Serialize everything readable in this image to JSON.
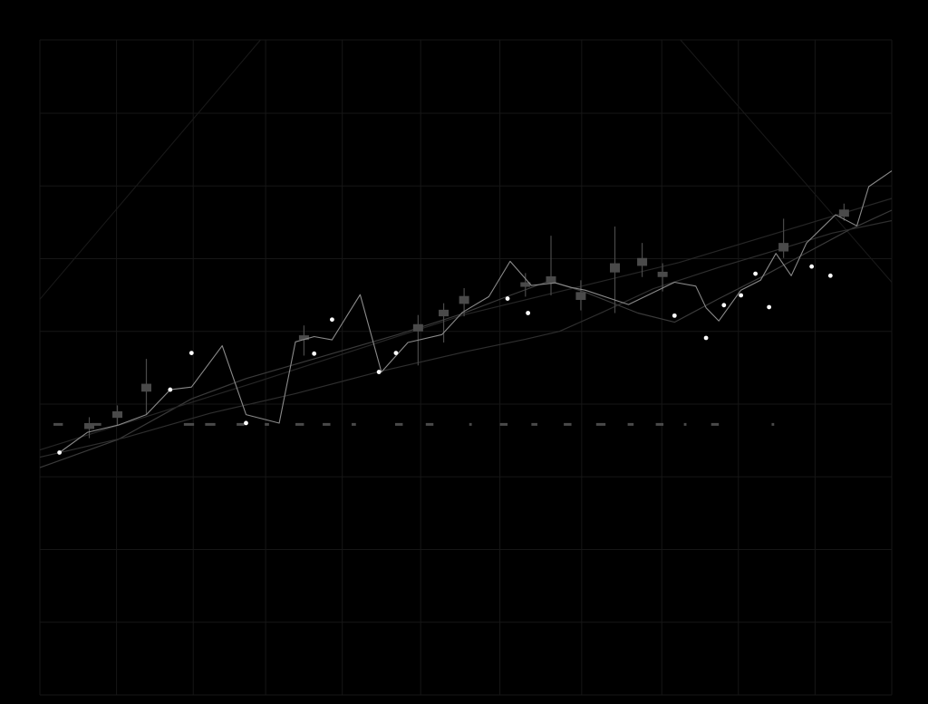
{
  "chart_data": {
    "type": "line",
    "title": "",
    "xlabel": "",
    "ylabel": "",
    "xlim": [
      0,
      100
    ],
    "ylim": [
      0,
      100
    ],
    "grid": true,
    "legend": "none",
    "colors": {
      "background": "#000000",
      "grid": "#161616",
      "price_line": "#8a8a8a",
      "price_marker": "#ffffff",
      "ma_fast": "#3a3a3a",
      "ma_slow": "#2e2e2e",
      "ma_long": "#262626",
      "candle": "#4a4a4a",
      "wick": "#4a4a4a",
      "reference_dash": "#4a4a4a",
      "envelope": "#1a1a1a"
    },
    "series": [
      {
        "role": "price",
        "x": [
          2.3,
          5.6,
          9.2,
          12.5,
          15.3,
          17.8,
          21.4,
          24.2,
          28.1,
          30.0,
          32.2,
          34.3,
          37.6,
          40.1,
          43.2,
          47.2,
          49.6,
          52.7,
          55.2,
          57.7,
          60.5,
          62.4,
          64.0,
          69.1,
          74.5,
          77.0,
          78.2,
          79.7,
          82.3,
          84.6,
          86.4,
          88.2,
          90.0,
          93.4,
          95.9,
          97.3,
          100.0
        ],
        "y": [
          37.0,
          40.1,
          41.2,
          42.8,
          46.6,
          47.0,
          53.3,
          42.8,
          41.5,
          53.9,
          54.7,
          54.2,
          61.1,
          49.3,
          53.8,
          55.0,
          58.4,
          60.8,
          66.2,
          62.5,
          62.9,
          62.2,
          61.8,
          59.6,
          63.0,
          62.4,
          59.1,
          57.1,
          61.8,
          63.3,
          67.4,
          64.0,
          69.0,
          73.3,
          71.6,
          77.6,
          80.0
        ]
      },
      {
        "role": "ma_fast",
        "x": [
          0.0,
          9.2,
          17.8,
          24.2,
          34.3,
          42.0,
          49.6,
          55.2,
          59.8,
          64.0,
          70.2,
          74.5,
          79.7,
          85.0,
          90.0,
          95.0,
          100.0
        ],
        "y": [
          34.7,
          39.0,
          45.2,
          48.3,
          52.1,
          55.0,
          58.2,
          61.0,
          63.2,
          61.5,
          58.3,
          56.9,
          60.5,
          64.0,
          67.5,
          71.0,
          74.0
        ]
      },
      {
        "role": "ma_slow",
        "x": [
          0.0,
          10.0,
          20.0,
          30.0,
          40.0,
          50.0,
          57.0,
          61.0,
          66.0,
          72.0,
          80.0,
          87.0,
          93.0,
          100.0
        ],
        "y": [
          36.3,
          39.3,
          43.0,
          46.0,
          49.4,
          52.4,
          54.3,
          55.5,
          58.4,
          62.0,
          65.4,
          68.1,
          70.5,
          72.4
        ]
      },
      {
        "role": "ma_long",
        "x": [
          0.0,
          25.0,
          50.0,
          75.0,
          100.0
        ],
        "y": [
          37.4,
          47.6,
          58.1,
          66.0,
          75.8
        ]
      }
    ],
    "markers": {
      "x": [
        2.3,
        15.3,
        17.8,
        24.2,
        32.2,
        34.3,
        39.8,
        41.8,
        54.9,
        57.3,
        74.5,
        78.2,
        80.3,
        82.3,
        84.0,
        85.6,
        90.6,
        92.8
      ],
      "y": [
        37.0,
        46.6,
        52.2,
        41.5,
        52.1,
        57.3,
        49.3,
        52.2,
        60.5,
        58.3,
        57.9,
        54.5,
        59.5,
        61.0,
        64.3,
        59.2,
        65.4,
        64.0
      ]
    },
    "candles": [
      {
        "x": 5.8,
        "open": 40.6,
        "close": 41.5,
        "high": 42.4,
        "low": 39.2
      },
      {
        "x": 9.1,
        "open": 42.3,
        "close": 43.3,
        "high": 44.2,
        "low": 41.2
      },
      {
        "x": 12.5,
        "open": 46.3,
        "close": 47.5,
        "high": 51.3,
        "low": 42.8
      },
      {
        "x": 31.0,
        "open": 54.2,
        "close": 54.9,
        "high": 56.4,
        "low": 51.8
      },
      {
        "x": 44.4,
        "open": 55.5,
        "close": 56.6,
        "high": 58.0,
        "low": 50.3
      },
      {
        "x": 47.4,
        "open": 57.8,
        "close": 58.8,
        "high": 59.8,
        "low": 53.8
      },
      {
        "x": 49.8,
        "open": 59.7,
        "close": 60.9,
        "high": 62.1,
        "low": 57.8
      },
      {
        "x": 57.0,
        "open": 62.3,
        "close": 63.0,
        "high": 64.4,
        "low": 60.8
      },
      {
        "x": 60.0,
        "open": 62.9,
        "close": 63.9,
        "high": 70.1,
        "low": 61.0
      },
      {
        "x": 63.5,
        "open": 60.3,
        "close": 61.5,
        "high": 63.3,
        "low": 58.7
      },
      {
        "x": 67.5,
        "open": 64.5,
        "close": 65.9,
        "high": 71.5,
        "low": 58.3
      },
      {
        "x": 70.7,
        "open": 65.5,
        "close": 66.7,
        "high": 69.0,
        "low": 63.8
      },
      {
        "x": 73.1,
        "open": 63.8,
        "close": 64.6,
        "high": 65.9,
        "low": 61.6
      },
      {
        "x": 87.3,
        "open": 67.7,
        "close": 69.0,
        "high": 72.7,
        "low": 66.7
      },
      {
        "x": 94.4,
        "open": 73.0,
        "close": 74.1,
        "high": 75.0,
        "low": 72.4
      }
    ],
    "reference_line": {
      "y": 41.3,
      "segments": [
        [
          1.6,
          2.7
        ],
        [
          6.1,
          7.2
        ],
        [
          16.9,
          18.1
        ],
        [
          19.4,
          20.6
        ],
        [
          23.1,
          24.0
        ],
        [
          26.4,
          26.9
        ],
        [
          30.0,
          31.0
        ],
        [
          33.2,
          34.1
        ],
        [
          36.6,
          37.1
        ],
        [
          41.7,
          42.6
        ],
        [
          45.3,
          46.2
        ],
        [
          50.4,
          50.7
        ],
        [
          54.0,
          54.9
        ],
        [
          57.7,
          58.4
        ],
        [
          61.5,
          62.4
        ],
        [
          65.3,
          66.4
        ],
        [
          69.0,
          69.7
        ],
        [
          72.3,
          73.2
        ],
        [
          75.6,
          75.9
        ],
        [
          78.8,
          79.7
        ],
        [
          85.9,
          86.2
        ]
      ]
    },
    "envelope_lines": [
      {
        "x": [
          0.0,
          25.9
        ],
        "y": [
          60.4,
          100.0
        ]
      },
      {
        "x": [
          75.2,
          100.0
        ],
        "y": [
          100.0,
          63.0
        ]
      }
    ]
  }
}
